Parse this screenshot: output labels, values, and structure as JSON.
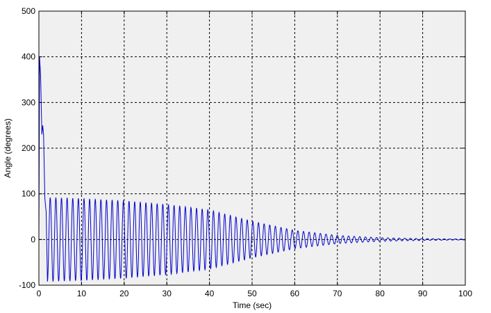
{
  "chart_data": {
    "type": "line",
    "xlabel": "Time (sec)",
    "ylabel": "Angle (degrees)",
    "xlim": [
      0,
      100
    ],
    "ylim": [
      -100,
      500
    ],
    "xticks": [
      0,
      10,
      20,
      30,
      40,
      50,
      60,
      70,
      80,
      90,
      100
    ],
    "yticks": [
      -100,
      0,
      100,
      200,
      300,
      400,
      500
    ],
    "grid": true,
    "legend": "none",
    "background_color": "#f0f0f0",
    "line_color": "#0000cc",
    "series": [
      {
        "initial_points": [
          [
            0,
            0
          ],
          [
            0.15,
            400
          ],
          [
            0.4,
            360
          ],
          [
            0.7,
            230
          ],
          [
            0.9,
            250
          ],
          [
            1.1,
            230
          ],
          [
            1.4,
            90
          ],
          [
            1.7,
            60
          ],
          [
            2.0,
            -90
          ]
        ],
        "oscillation": {
          "start_time": 2.0,
          "end_time": 100,
          "period": 1.32,
          "envelope": [
            [
              2,
              92
            ],
            [
              10,
              90
            ],
            [
              20,
              85
            ],
            [
              30,
              77
            ],
            [
              40,
              65
            ],
            [
              50,
              40
            ],
            [
              60,
              20
            ],
            [
              70,
              9
            ],
            [
              80,
              4
            ],
            [
              90,
              2
            ],
            [
              100,
              1
            ]
          ]
        }
      }
    ]
  }
}
